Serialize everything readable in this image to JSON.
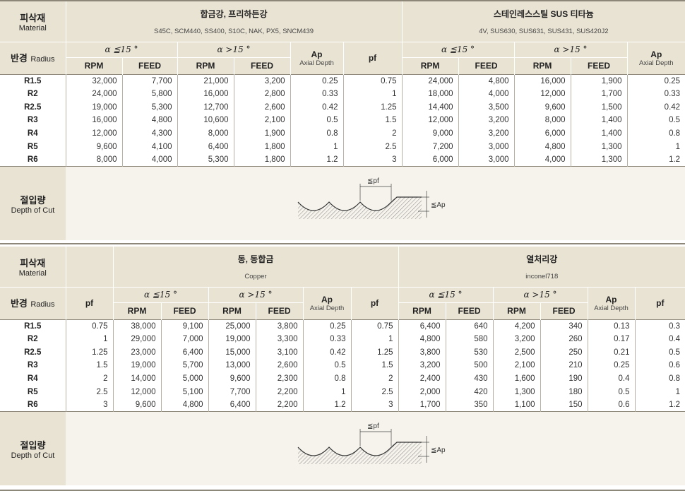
{
  "table1": {
    "material_ko": "피삭재",
    "material_en": "Material",
    "group1_title": "합금강, 프리하든강",
    "group1_sub": "S45C, SCM440, SS400, S10C, NAK, PX5, SNCM439",
    "group2_title": "스테인레스스틸 SUS 티타늄",
    "group2_sub": "4V, SUS630, SUS631, SUS431, SUS420J2",
    "radius_ko": "반경",
    "radius_en": "Radius",
    "alpha_le": "α ≦15 °",
    "alpha_gt": "α >15 °",
    "rpm": "RPM",
    "feed": "FEED",
    "ap": "Ap",
    "ap_sub": "Axial Depth",
    "pf": "pf",
    "rows": [
      [
        "R1.5",
        "32,000",
        "7,700",
        "21,000",
        "3,200",
        "0.25",
        "0.75",
        "24,000",
        "4,800",
        "16,000",
        "1,900",
        "0.25"
      ],
      [
        "R2",
        "24,000",
        "5,800",
        "16,000",
        "2,800",
        "0.33",
        "1",
        "18,000",
        "4,000",
        "12,000",
        "1,700",
        "0.33"
      ],
      [
        "R2.5",
        "19,000",
        "5,300",
        "12,700",
        "2,600",
        "0.42",
        "1.25",
        "14,400",
        "3,500",
        "9,600",
        "1,500",
        "0.42"
      ],
      [
        "R3",
        "16,000",
        "4,800",
        "10,600",
        "2,100",
        "0.5",
        "1.5",
        "12,000",
        "3,200",
        "8,000",
        "1,400",
        "0.5"
      ],
      [
        "R4",
        "12,000",
        "4,300",
        "8,000",
        "1,900",
        "0.8",
        "2",
        "9,000",
        "3,200",
        "6,000",
        "1,400",
        "0.8"
      ],
      [
        "R5",
        "9,600",
        "4,100",
        "6,400",
        "1,800",
        "1",
        "2.5",
        "7,200",
        "3,000",
        "4,800",
        "1,300",
        "1"
      ],
      [
        "R6",
        "8,000",
        "4,000",
        "5,300",
        "1,800",
        "1.2",
        "3",
        "6,000",
        "3,000",
        "4,000",
        "1,300",
        "1.2"
      ]
    ],
    "doc_ko": "절입량",
    "doc_en": "Depth of Cut",
    "diagram_pf": "≦pf",
    "diagram_ap": "≦Ap"
  },
  "table2": {
    "material_ko": "피삭재",
    "material_en": "Material",
    "group1_title": "동, 동합금",
    "group1_sub": "Copper",
    "group2_title": "열처리강",
    "group2_sub": "inconel718",
    "radius_ko": "반경",
    "radius_en": "Radius",
    "alpha_le": "α ≦15 °",
    "alpha_gt": "α >15 °",
    "rpm": "RPM",
    "feed": "FEED",
    "ap": "Ap",
    "ap_sub": "Axial Depth",
    "pf": "pf",
    "rows": [
      [
        "R1.5",
        "0.75",
        "38,000",
        "9,100",
        "25,000",
        "3,800",
        "0.25",
        "0.75",
        "6,400",
        "640",
        "4,200",
        "340",
        "0.13",
        "0.3"
      ],
      [
        "R2",
        "1",
        "29,000",
        "7,000",
        "19,000",
        "3,300",
        "0.33",
        "1",
        "4,800",
        "580",
        "3,200",
        "260",
        "0.17",
        "0.4"
      ],
      [
        "R2.5",
        "1.25",
        "23,000",
        "6,400",
        "15,000",
        "3,100",
        "0.42",
        "1.25",
        "3,800",
        "530",
        "2,500",
        "250",
        "0.21",
        "0.5"
      ],
      [
        "R3",
        "1.5",
        "19,000",
        "5,700",
        "13,000",
        "2,600",
        "0.5",
        "1.5",
        "3,200",
        "500",
        "2,100",
        "210",
        "0.25",
        "0.6"
      ],
      [
        "R4",
        "2",
        "14,000",
        "5,000",
        "9,600",
        "2,300",
        "0.8",
        "2",
        "2,400",
        "430",
        "1,600",
        "190",
        "0.4",
        "0.8"
      ],
      [
        "R5",
        "2.5",
        "12,000",
        "5,100",
        "7,700",
        "2,200",
        "1",
        "2.5",
        "2,000",
        "420",
        "1,300",
        "180",
        "0.5",
        "1"
      ],
      [
        "R6",
        "3",
        "9,600",
        "4,800",
        "6,400",
        "2,200",
        "1.2",
        "3",
        "1,700",
        "350",
        "1,100",
        "150",
        "0.6",
        "1.2"
      ]
    ],
    "doc_ko": "절입량",
    "doc_en": "Depth of Cut",
    "diagram_pf": "≦pf",
    "diagram_ap": "≦Ap"
  }
}
